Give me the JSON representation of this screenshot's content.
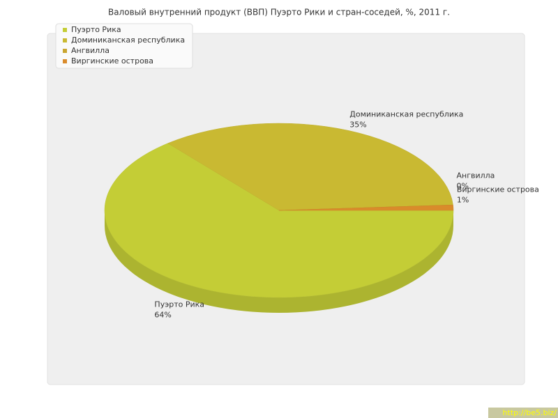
{
  "chart_data": {
    "type": "pie",
    "title": "Валовый внутренний продукт (ВВП) Пуэрто Рики и стран-соседей, %, 2011 г.",
    "categories": [
      "Пуэрто Рика",
      "Доминиканская республика",
      "Ангвилла",
      "Виргинские острова"
    ],
    "values": [
      64,
      35,
      0,
      1
    ],
    "value_labels": [
      "64%",
      "35%",
      "0%",
      "1%"
    ],
    "colors": [
      "#c4cd36",
      "#c9b932",
      "#c9a530",
      "#d98b2b"
    ],
    "legend": "top-left"
  },
  "watermark": "http://be5.biz/"
}
